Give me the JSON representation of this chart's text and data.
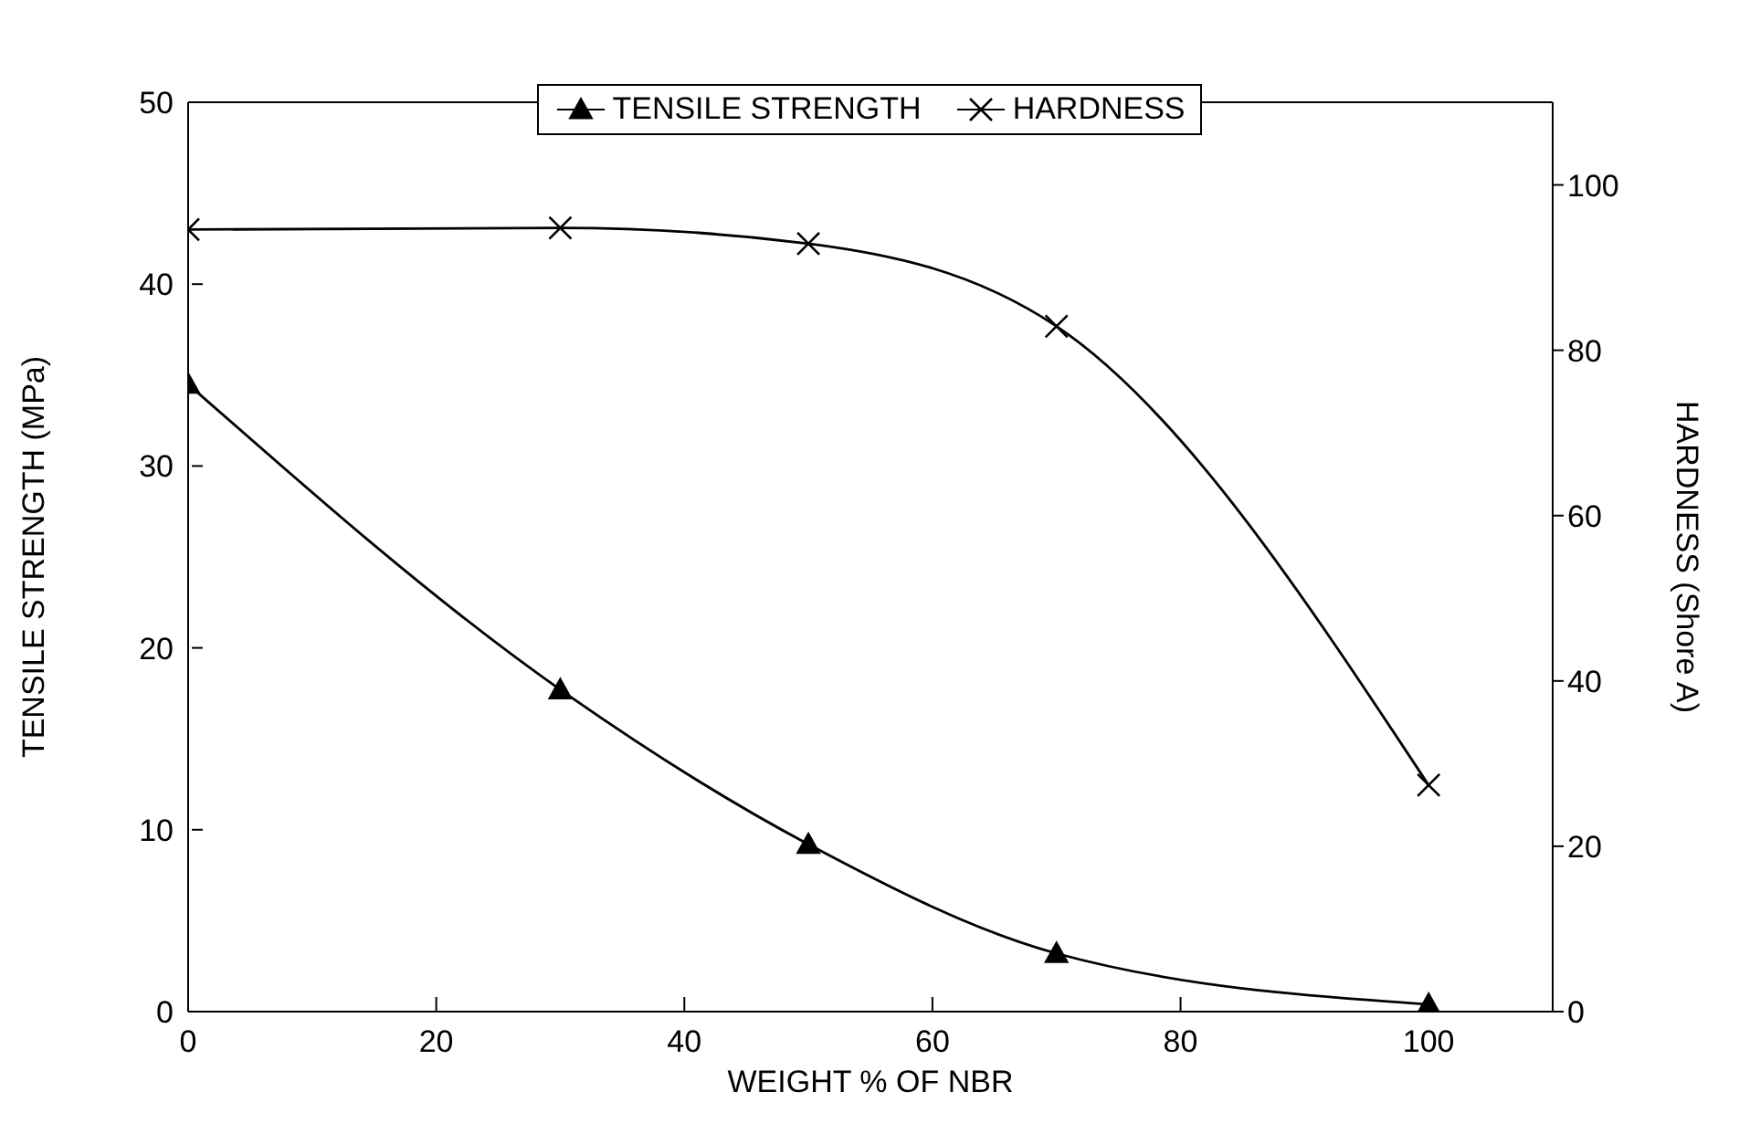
{
  "chart_data": {
    "type": "line",
    "xlabel": "WEIGHT % OF NBR",
    "ylabel": "TENSILE  STRENGTH (MPa)",
    "y2label": "HARDNESS (Shore A)",
    "x": [
      0,
      30,
      50,
      70,
      100
    ],
    "xlim": [
      0,
      110
    ],
    "xticks": [
      0,
      20,
      40,
      60,
      80,
      100
    ],
    "ylim": [
      0,
      50
    ],
    "yticks": [
      0,
      10,
      20,
      30,
      40,
      50
    ],
    "y2lim": [
      0,
      110
    ],
    "y2ticks": [
      0,
      20,
      40,
      60,
      80,
      100
    ],
    "legend": "top",
    "line_style": "solid",
    "series": [
      {
        "name": "TENSILE STRENGTH",
        "color": "#000000",
        "marker": "triangle",
        "values": [
          34.5,
          17.7,
          9.2,
          3.2,
          0.4
        ]
      },
      {
        "name": "HARDNESS",
        "color": "#000000",
        "marker": "cross",
        "axis": "y2",
        "values": [
          94.6,
          94.8,
          92.9,
          82.9,
          27.4
        ]
      }
    ]
  }
}
